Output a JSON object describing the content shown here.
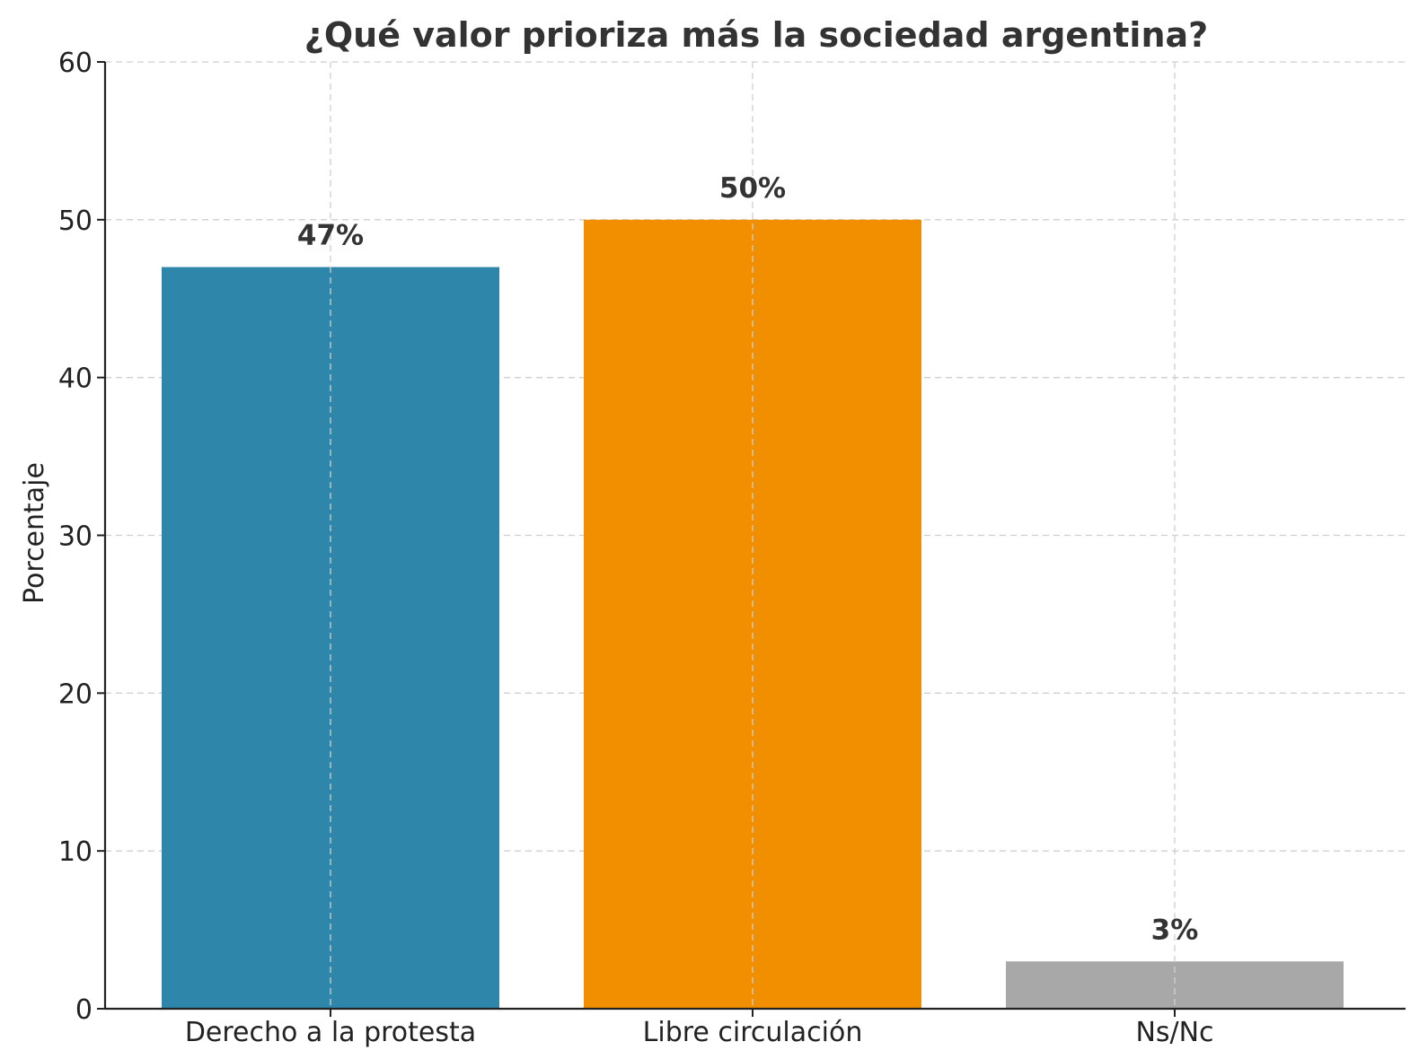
{
  "chart_data": {
    "type": "bar",
    "title": "¿Qué valor prioriza más la sociedad argentina?",
    "xlabel": "",
    "ylabel": "Porcentaje",
    "categories": [
      "Derecho a la protesta",
      "Libre circulación",
      "Ns/Nc"
    ],
    "values": [
      47,
      50,
      3
    ],
    "value_labels": [
      "47%",
      "50%",
      "3%"
    ],
    "colors": [
      "#2e86ab",
      "#f18f01",
      "#a8a8a8"
    ],
    "ylim": [
      0,
      60
    ],
    "yticks": [
      0,
      10,
      20,
      30,
      40,
      50,
      60
    ],
    "ytick_labels": [
      "0",
      "10",
      "20",
      "30",
      "40",
      "50",
      "60"
    ],
    "grid": true,
    "legend": "none"
  }
}
